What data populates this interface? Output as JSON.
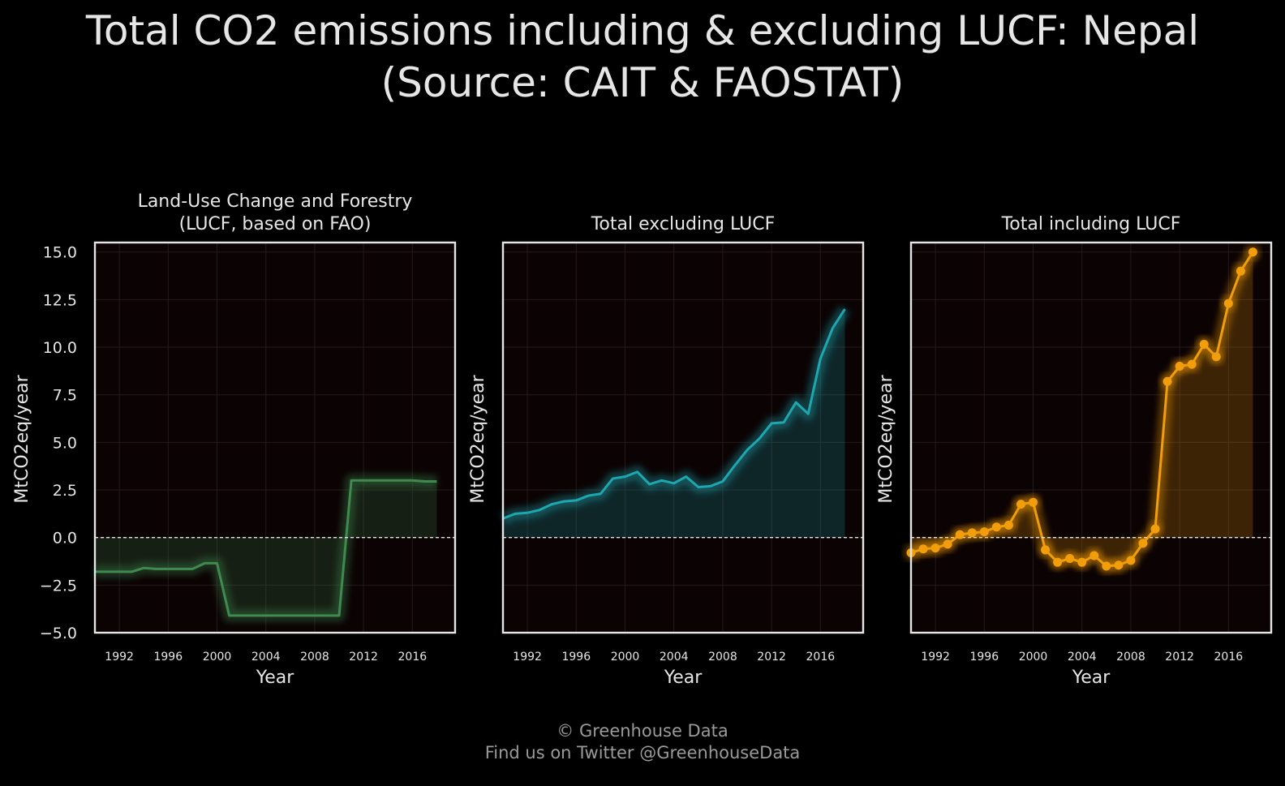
{
  "title": "Total CO2 emissions including & excluding LUCF: Nepal\n(Source: CAIT & FAOSTAT)",
  "footer": {
    "line1": "© Greenhouse Data",
    "line2": "Find us on Twitter @GreenhouseData"
  },
  "colors": {
    "background": "#000000",
    "plot_bg": "#0b0203",
    "lucf": "#3f8a4e",
    "excl": "#1ea7b0",
    "incl": "#f29d0c",
    "text": "#e6e6e6"
  },
  "chart_data": [
    {
      "type": "area",
      "title": "Land-Use Change and Forestry\n(LUCF, based on FAO)",
      "xlabel": "Year",
      "ylabel": "MtCO2eq/year",
      "xlim": [
        1990,
        2019.5
      ],
      "ylim": [
        -5.0,
        15.5
      ],
      "xticks": [
        "1992",
        "1996",
        "2000",
        "2004",
        "2008",
        "2012",
        "2016"
      ],
      "yticks": [
        "15.0",
        "12.5",
        "10.0",
        "7.5",
        "5.0",
        "2.5",
        "0.0",
        "−2.5",
        "−5.0"
      ],
      "show_yticks": true,
      "markers": false,
      "color": "#3f8a4e",
      "x": [
        1990,
        1991,
        1992,
        1993,
        1994,
        1995,
        1996,
        1997,
        1998,
        1999,
        2000,
        2001,
        2002,
        2003,
        2004,
        2005,
        2006,
        2007,
        2008,
        2009,
        2010,
        2011,
        2012,
        2013,
        2014,
        2015,
        2016,
        2017,
        2018
      ],
      "y": [
        -1.8,
        -1.8,
        -1.8,
        -1.8,
        -1.6,
        -1.65,
        -1.65,
        -1.65,
        -1.65,
        -1.35,
        -1.35,
        -4.1,
        -4.1,
        -4.1,
        -4.1,
        -4.1,
        -4.1,
        -4.1,
        -4.1,
        -4.1,
        -4.1,
        3.0,
        3.0,
        3.0,
        3.0,
        3.0,
        3.0,
        2.95,
        2.95
      ]
    },
    {
      "type": "area",
      "title": "Total excluding LUCF",
      "xlabel": "Year",
      "ylabel": "MtCO2eq/year",
      "xlim": [
        1990,
        2019.5
      ],
      "ylim": [
        -5.0,
        15.5
      ],
      "xticks": [
        "1992",
        "1996",
        "2000",
        "2004",
        "2008",
        "2012",
        "2016"
      ],
      "yticks": [],
      "show_yticks": false,
      "markers": false,
      "color": "#1ea7b0",
      "x": [
        1990,
        1991,
        1992,
        1993,
        1994,
        1995,
        1996,
        1997,
        1998,
        1999,
        2000,
        2001,
        2002,
        2003,
        2004,
        2005,
        2006,
        2007,
        2008,
        2009,
        2010,
        2011,
        2012,
        2013,
        2014,
        2015,
        2016,
        2017,
        2018
      ],
      "y": [
        1.0,
        1.25,
        1.3,
        1.45,
        1.75,
        1.9,
        1.95,
        2.2,
        2.3,
        3.1,
        3.2,
        3.45,
        2.8,
        3.0,
        2.85,
        3.2,
        2.65,
        2.7,
        2.95,
        3.8,
        4.6,
        5.2,
        6.0,
        6.05,
        7.1,
        6.5,
        9.4,
        11.0,
        12.0
      ]
    },
    {
      "type": "area",
      "title": "Total including LUCF",
      "xlabel": "Year",
      "ylabel": "MtCO2eq/year",
      "xlim": [
        1990,
        2019.5
      ],
      "ylim": [
        -5.0,
        15.5
      ],
      "xticks": [
        "1992",
        "1996",
        "2000",
        "2004",
        "2008",
        "2012",
        "2016"
      ],
      "yticks": [],
      "show_yticks": false,
      "markers": true,
      "color": "#f29d0c",
      "x": [
        1990,
        1991,
        1992,
        1993,
        1994,
        1995,
        1996,
        1997,
        1998,
        1999,
        2000,
        2001,
        2002,
        2003,
        2004,
        2005,
        2006,
        2007,
        2008,
        2009,
        2010,
        2011,
        2012,
        2013,
        2014,
        2015,
        2016,
        2017,
        2018
      ],
      "y": [
        -0.8,
        -0.6,
        -0.55,
        -0.35,
        0.15,
        0.25,
        0.3,
        0.55,
        0.65,
        1.75,
        1.85,
        -0.65,
        -1.3,
        -1.1,
        -1.3,
        -0.95,
        -1.5,
        -1.45,
        -1.2,
        -0.3,
        0.45,
        8.2,
        9.0,
        9.1,
        10.15,
        9.5,
        12.3,
        14.0,
        15.0
      ]
    }
  ]
}
